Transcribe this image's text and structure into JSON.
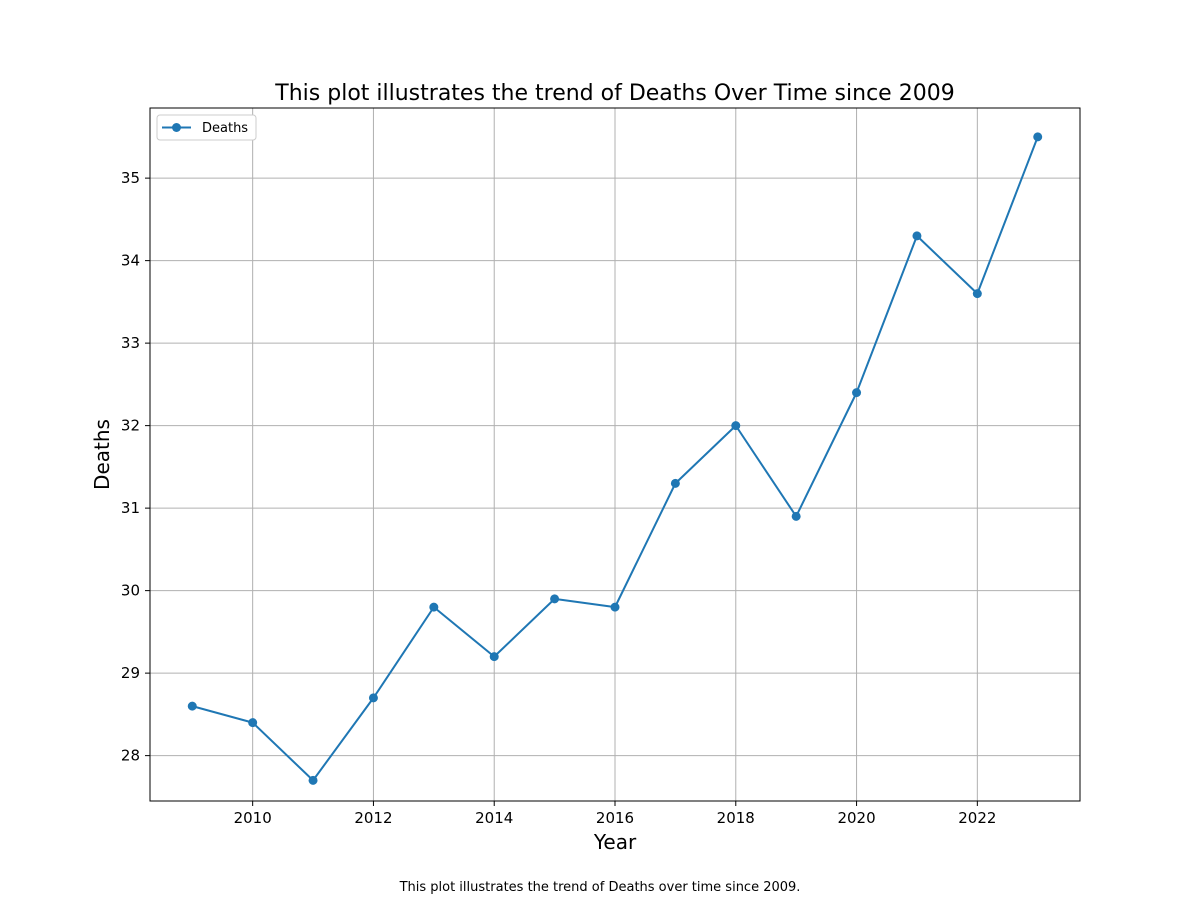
{
  "chart_data": {
    "type": "line",
    "title": "This plot illustrates the trend of Deaths Over Time since 2009",
    "xlabel": "Year",
    "ylabel": "Deaths",
    "x": [
      2009,
      2010,
      2011,
      2012,
      2013,
      2014,
      2015,
      2016,
      2017,
      2018,
      2019,
      2020,
      2021,
      2022,
      2023
    ],
    "series": [
      {
        "name": "Deaths",
        "color": "#1f77b4",
        "marker": "circle",
        "values": [
          28.6,
          28.4,
          27.7,
          28.7,
          29.8,
          29.2,
          29.9,
          29.8,
          31.3,
          32.0,
          30.9,
          32.4,
          34.3,
          33.6,
          35.5
        ]
      }
    ],
    "xlim": [
      2008.3,
      2023.7
    ],
    "ylim": [
      27.45,
      35.85
    ],
    "xticks": [
      2010,
      2012,
      2014,
      2016,
      2018,
      2020,
      2022
    ],
    "xtick_labels": [
      "2010",
      "2012",
      "2014",
      "2016",
      "2018",
      "2020",
      "2022"
    ],
    "yticks": [
      28,
      29,
      30,
      31,
      32,
      33,
      34,
      35
    ],
    "ytick_labels": [
      "28",
      "29",
      "30",
      "31",
      "32",
      "33",
      "34",
      "35"
    ],
    "grid": true,
    "grid_color": "#b0b0b0",
    "legend_position": "upper left",
    "caption": "This plot illustrates the trend of Deaths over time since 2009."
  }
}
